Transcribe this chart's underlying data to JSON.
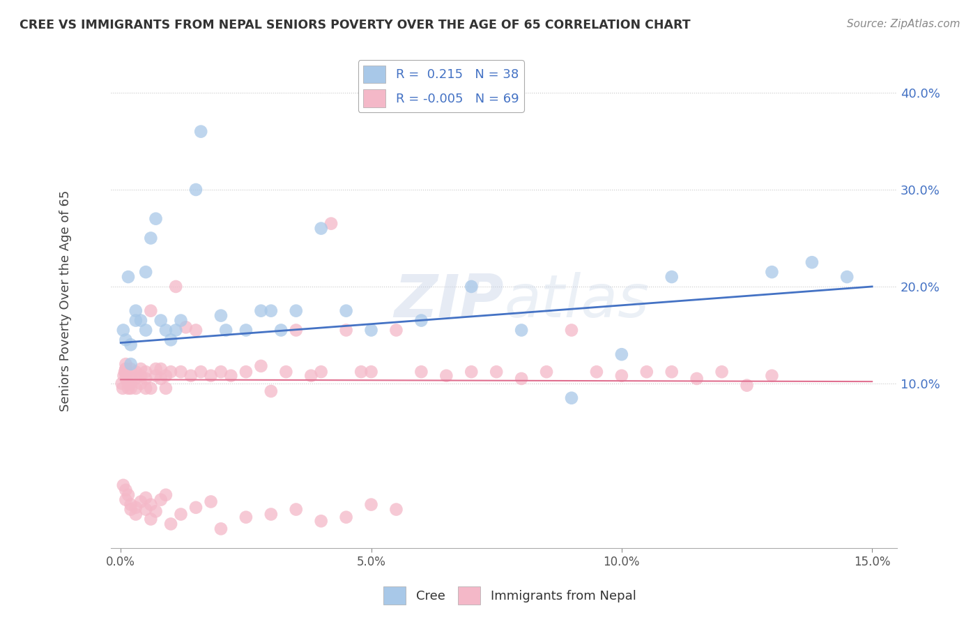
{
  "title": "CREE VS IMMIGRANTS FROM NEPAL SENIORS POVERTY OVER THE AGE OF 65 CORRELATION CHART",
  "source": "Source: ZipAtlas.com",
  "ylabel": "Seniors Poverty Over the Age of 65",
  "xlim": [
    -0.002,
    0.155
  ],
  "ylim": [
    -0.07,
    0.44
  ],
  "xticks": [
    0.0,
    0.05,
    0.1,
    0.15
  ],
  "xtick_labels": [
    "0.0%",
    "5.0%",
    "10.0%",
    "15.0%"
  ],
  "yticks": [
    0.1,
    0.2,
    0.3,
    0.4
  ],
  "ytick_labels": [
    "10.0%",
    "20.0%",
    "30.0%",
    "40.0%"
  ],
  "watermark_zip": "ZIP",
  "watermark_atlas": "atlas",
  "cree_color": "#a8c8e8",
  "nepal_color": "#f4b8c8",
  "cree_R": 0.215,
  "cree_N": 38,
  "nepal_R": -0.005,
  "nepal_N": 69,
  "cree_line_color": "#4472c4",
  "nepal_line_color": "#e07090",
  "background_color": "#ffffff",
  "grid_color": "#c8c8c8",
  "ytick_color": "#4472c4",
  "xtick_color": "#555555",
  "cree_x": [
    0.0005,
    0.001,
    0.0015,
    0.002,
    0.002,
    0.003,
    0.003,
    0.004,
    0.005,
    0.005,
    0.006,
    0.007,
    0.008,
    0.009,
    0.01,
    0.011,
    0.012,
    0.015,
    0.016,
    0.02,
    0.021,
    0.025,
    0.028,
    0.03,
    0.032,
    0.035,
    0.04,
    0.045,
    0.05,
    0.06,
    0.07,
    0.08,
    0.09,
    0.1,
    0.11,
    0.13,
    0.138,
    0.145
  ],
  "cree_y": [
    0.155,
    0.145,
    0.21,
    0.12,
    0.14,
    0.175,
    0.165,
    0.165,
    0.155,
    0.215,
    0.25,
    0.27,
    0.165,
    0.155,
    0.145,
    0.155,
    0.165,
    0.3,
    0.36,
    0.17,
    0.155,
    0.155,
    0.175,
    0.175,
    0.155,
    0.175,
    0.26,
    0.175,
    0.155,
    0.165,
    0.2,
    0.155,
    0.085,
    0.13,
    0.21,
    0.215,
    0.225,
    0.21
  ],
  "nepal_x": [
    0.0002,
    0.0004,
    0.0006,
    0.0008,
    0.001,
    0.001,
    0.001,
    0.001,
    0.001,
    0.0015,
    0.0015,
    0.002,
    0.002,
    0.002,
    0.002,
    0.003,
    0.003,
    0.003,
    0.004,
    0.004,
    0.004,
    0.005,
    0.005,
    0.005,
    0.006,
    0.006,
    0.007,
    0.007,
    0.008,
    0.008,
    0.009,
    0.009,
    0.01,
    0.011,
    0.012,
    0.013,
    0.014,
    0.015,
    0.016,
    0.018,
    0.02,
    0.022,
    0.025,
    0.028,
    0.03,
    0.033,
    0.035,
    0.038,
    0.04,
    0.042,
    0.045,
    0.048,
    0.05,
    0.055,
    0.06,
    0.065,
    0.07,
    0.075,
    0.08,
    0.085,
    0.09,
    0.095,
    0.1,
    0.105,
    0.11,
    0.115,
    0.12,
    0.125,
    0.13
  ],
  "nepal_y": [
    0.1,
    0.095,
    0.108,
    0.112,
    0.105,
    0.11,
    0.115,
    0.115,
    0.12,
    0.095,
    0.1,
    0.095,
    0.1,
    0.108,
    0.115,
    0.095,
    0.105,
    0.112,
    0.1,
    0.108,
    0.115,
    0.095,
    0.105,
    0.112,
    0.095,
    0.175,
    0.108,
    0.115,
    0.105,
    0.115,
    0.108,
    0.095,
    0.112,
    0.2,
    0.112,
    0.158,
    0.108,
    0.155,
    0.112,
    0.108,
    0.112,
    0.108,
    0.112,
    0.118,
    0.092,
    0.112,
    0.155,
    0.108,
    0.112,
    0.265,
    0.155,
    0.112,
    0.112,
    0.155,
    0.112,
    0.108,
    0.112,
    0.112,
    0.105,
    0.112,
    0.155,
    0.112,
    0.108,
    0.112,
    0.112,
    0.105,
    0.112,
    0.098,
    0.108
  ],
  "nepal_below_x": [
    0.0005,
    0.001,
    0.001,
    0.0015,
    0.002,
    0.002,
    0.003,
    0.003,
    0.004,
    0.005,
    0.005,
    0.006,
    0.006,
    0.007,
    0.008,
    0.009,
    0.01,
    0.012,
    0.015,
    0.018,
    0.02,
    0.025,
    0.03,
    0.035,
    0.04,
    0.045,
    0.05,
    0.055
  ],
  "nepal_below_y": [
    -0.005,
    -0.01,
    -0.02,
    -0.015,
    -0.025,
    -0.03,
    -0.035,
    -0.028,
    -0.022,
    -0.018,
    -0.03,
    -0.025,
    -0.04,
    -0.032,
    -0.02,
    -0.015,
    -0.045,
    -0.035,
    -0.028,
    -0.022,
    -0.05,
    -0.038,
    -0.035,
    -0.03,
    -0.042,
    -0.038,
    -0.025,
    -0.03
  ]
}
